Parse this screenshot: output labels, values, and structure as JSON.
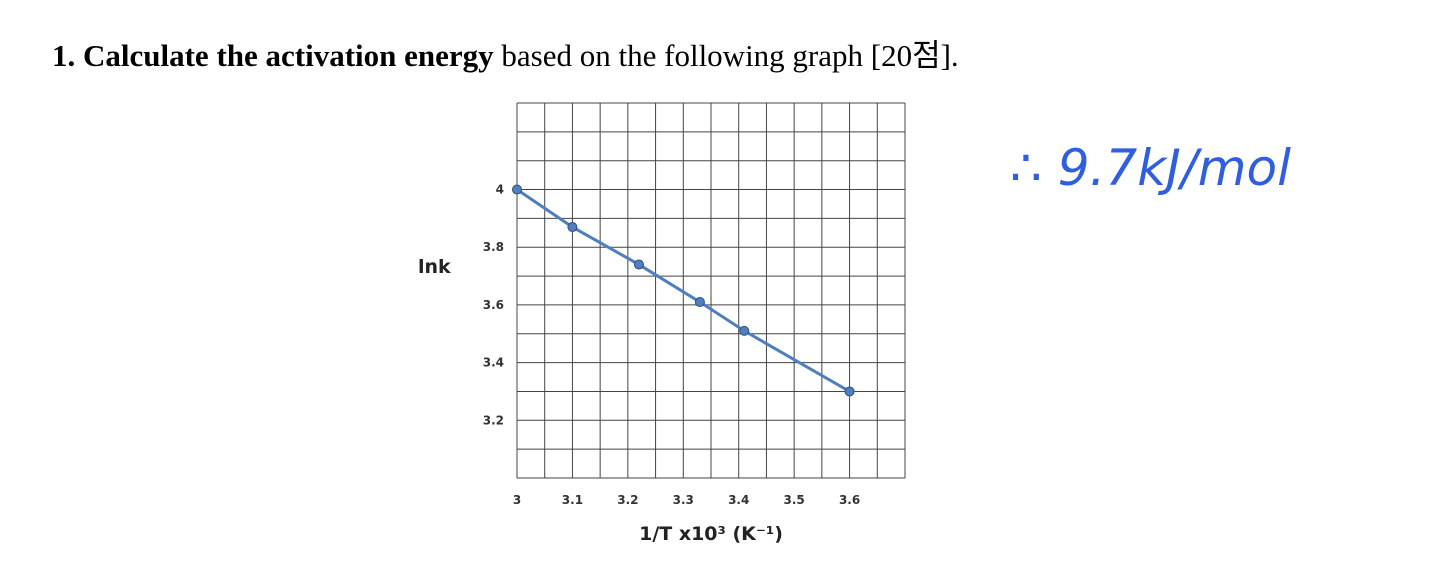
{
  "question": {
    "number": "1.",
    "bold": "Calculate the activation energy",
    "rest": "based on the following graph [20점]."
  },
  "answer": "∴ 9.7kJ/mol",
  "chart_data": {
    "type": "line",
    "y_label": "lnk",
    "x_label": "1/T x10³ (K⁻¹)",
    "x": [
      3,
      3.1,
      3.22,
      3.33,
      3.41,
      3.6
    ],
    "values": [
      4.0,
      3.87,
      3.74,
      3.61,
      3.51,
      3.3
    ],
    "color": "#4f7fbf",
    "xlim": [
      3,
      3.7
    ],
    "ylim": [
      3.0,
      4.3
    ],
    "xticks": [
      3,
      3.1,
      3.2,
      3.3,
      3.4,
      3.5,
      3.6
    ],
    "yticks": [
      3.2,
      3.4,
      3.6,
      3.8,
      4
    ],
    "x_grid": [
      3,
      3.05,
      3.1,
      3.15,
      3.2,
      3.25,
      3.3,
      3.35,
      3.4,
      3.45,
      3.5,
      3.55,
      3.6,
      3.65,
      3.7
    ],
    "y_grid": [
      3.0,
      3.1,
      3.2,
      3.3,
      3.4,
      3.5,
      3.6,
      3.7,
      3.8,
      3.9,
      4.0,
      4.1,
      4.2,
      4.3
    ],
    "grid": true
  }
}
